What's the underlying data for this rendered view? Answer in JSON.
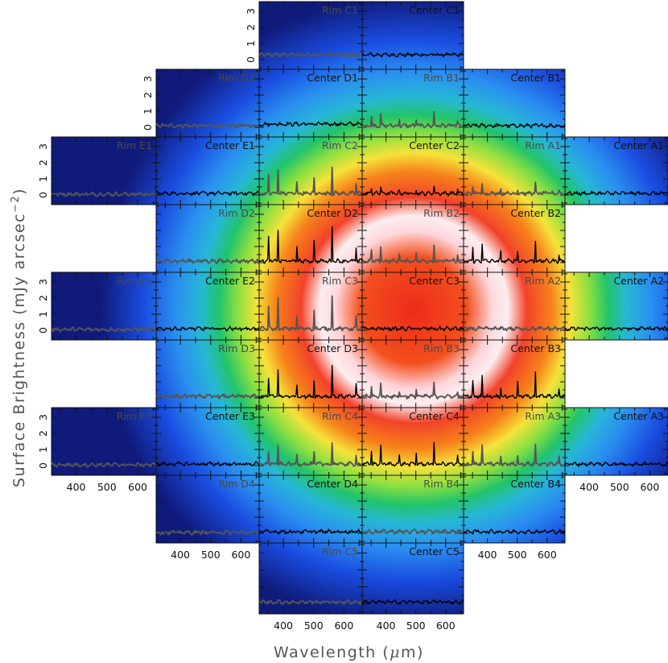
{
  "chart_data": {
    "type": "line",
    "ylabel": "Surface Brightness (mJy arcsec",
    "ylabel_exponent": "−2",
    "ylabel_close": ")",
    "xlabel_prefix": "Wavelength (",
    "xlabel_mu": "μ",
    "xlabel_suffix": "m)",
    "xlim": [
      320,
      660
    ],
    "ylim": [
      -0.6,
      3.6
    ],
    "x_ticks": [
      400,
      500,
      600
    ],
    "y_ticks": [
      0,
      1,
      2,
      3
    ],
    "background": "false-color brightness map (blue → green → yellow → red → white)",
    "series_colors": {
      "center": "#000000",
      "rim": "#555555"
    },
    "panels": [
      {
        "label": "Rim C1",
        "type": "rim",
        "level": 0.3
      },
      {
        "label": "Center C1",
        "type": "center",
        "level": 0.3
      },
      {
        "label": "Rim D1",
        "type": "rim",
        "level": 0.1
      },
      {
        "label": "Center D1",
        "type": "center",
        "level": 0.2
      },
      {
        "label": "Rim B1",
        "type": "rim",
        "level": 0.1,
        "lines": 1.0
      },
      {
        "label": "Center B1",
        "type": "center",
        "level": 0.1
      },
      {
        "label": "Rim E1",
        "type": "rim",
        "level": 0.05
      },
      {
        "label": "Center E1",
        "type": "center",
        "level": 0.1
      },
      {
        "label": "Rim C2",
        "type": "rim",
        "level": 0.1,
        "lines": 2.0
      },
      {
        "label": "Center C2",
        "type": "center",
        "level": 0.1,
        "lines": 0.6
      },
      {
        "label": "Rim A1",
        "type": "rim",
        "level": 0.1,
        "lines": 0.7
      },
      {
        "label": "Center A1",
        "type": "center",
        "level": 0.1
      },
      {
        "label": "Rim D2",
        "type": "rim",
        "level": 0.1
      },
      {
        "label": "Center D2",
        "type": "center",
        "level": 0.1,
        "lines": 2.6
      },
      {
        "label": "Rim B2",
        "type": "rim",
        "level": 0.1,
        "lines": 1.2
      },
      {
        "label": "Center B2",
        "type": "center",
        "level": 0.1,
        "lines": 1.5
      },
      {
        "label": "Rim E2",
        "type": "rim",
        "level": 0.05
      },
      {
        "label": "Center E2",
        "type": "center",
        "level": 0.1
      },
      {
        "label": "Rim C3",
        "type": "rim",
        "level": 0.1,
        "lines": 2.4
      },
      {
        "label": "Center C3",
        "type": "center",
        "level": 0.1
      },
      {
        "label": "Rim A2",
        "type": "rim",
        "level": 0.1
      },
      {
        "label": "Center A2",
        "type": "center",
        "level": 0.1
      },
      {
        "label": "Rim D3",
        "type": "rim",
        "level": 0.1
      },
      {
        "label": "Center D3",
        "type": "center",
        "level": 0.1,
        "lines": 2.2
      },
      {
        "label": "Rim B3",
        "type": "rim",
        "level": 0.1,
        "lines": 1.0
      },
      {
        "label": "Center B3",
        "type": "center",
        "level": 0.1,
        "lines": 1.8
      },
      {
        "label": "Rim E3",
        "type": "rim",
        "level": 0.05
      },
      {
        "label": "Center E3",
        "type": "center",
        "level": 0.1
      },
      {
        "label": "Rim C4",
        "type": "rim",
        "level": 0.1,
        "lines": 1.6
      },
      {
        "label": "Center C4",
        "type": "center",
        "level": 0.1,
        "lines": 1.6
      },
      {
        "label": "Rim A3",
        "type": "rim",
        "level": 0.1,
        "lines": 1.4
      },
      {
        "label": "Center A3",
        "type": "center",
        "level": 0.1
      },
      {
        "label": "Rim D4",
        "type": "rim",
        "level": 0.05
      },
      {
        "label": "Center D4",
        "type": "center",
        "level": 0.1
      },
      {
        "label": "Rim B4",
        "type": "rim",
        "level": 0.1
      },
      {
        "label": "Center B4",
        "type": "center",
        "level": 0.1
      },
      {
        "label": "Rim C5",
        "type": "rim",
        "level": 0.1
      },
      {
        "label": "Center C5",
        "type": "center",
        "level": 0.1
      }
    ]
  }
}
